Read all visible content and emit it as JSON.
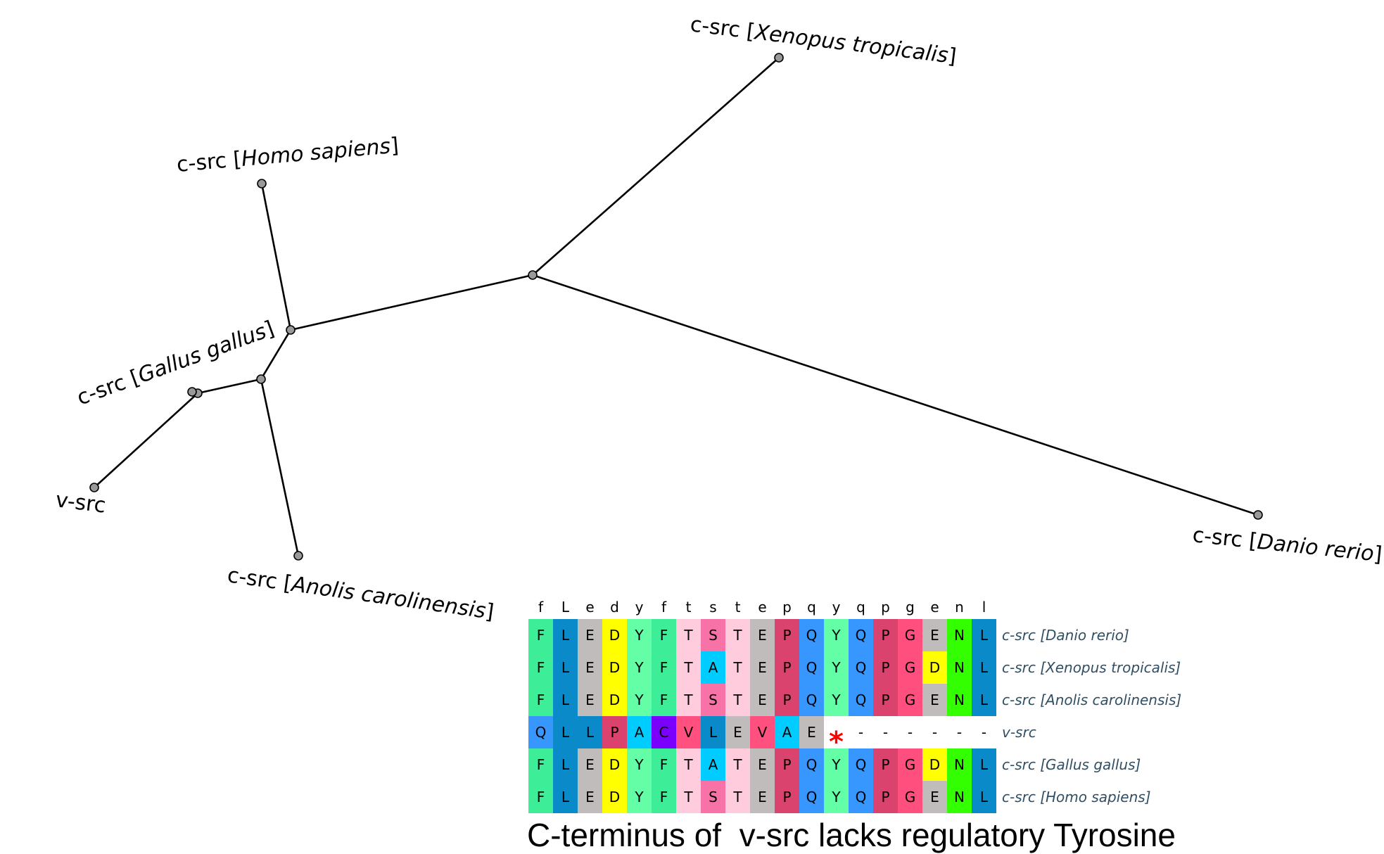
{
  "tree": {
    "leaves": [
      {
        "prefix": "c-src [",
        "species": "Xenopus tropicalis",
        "suffix": "]"
      },
      {
        "prefix": "c-src [",
        "species": "Homo sapiens",
        "suffix": "]"
      },
      {
        "prefix": "c-src [",
        "species": "Gallus gallus",
        "suffix": "]"
      },
      {
        "prefix": "v-src",
        "species": "",
        "suffix": ""
      },
      {
        "prefix": "c-src [",
        "species": "Anolis carolinensis",
        "suffix": "]"
      },
      {
        "prefix": "c-src [",
        "species": "Danio rerio",
        "suffix": "]"
      }
    ],
    "node_color": "#999999",
    "branch_color": "#000000"
  },
  "alignment": {
    "consensus": [
      "f",
      "L",
      "e",
      "d",
      "y",
      "f",
      "t",
      "s",
      "t",
      "e",
      "p",
      "q",
      "y",
      "q",
      "p",
      "g",
      "e",
      "n",
      "l"
    ],
    "sequences": [
      {
        "name": "c-src [Danio rerio]",
        "residues": [
          "F",
          "L",
          "E",
          "D",
          "Y",
          "F",
          "T",
          "S",
          "T",
          "E",
          "P",
          "Q",
          "Y",
          "Q",
          "P",
          "G",
          "E",
          "N",
          "L"
        ]
      },
      {
        "name": "c-src [Xenopus tropicalis]",
        "residues": [
          "F",
          "L",
          "E",
          "D",
          "Y",
          "F",
          "T",
          "A",
          "T",
          "E",
          "P",
          "Q",
          "Y",
          "Q",
          "P",
          "G",
          "D",
          "N",
          "L"
        ]
      },
      {
        "name": "c-src [Anolis carolinensis]",
        "residues": [
          "F",
          "L",
          "E",
          "D",
          "Y",
          "F",
          "T",
          "S",
          "T",
          "E",
          "P",
          "Q",
          "Y",
          "Q",
          "P",
          "G",
          "E",
          "N",
          "L"
        ]
      },
      {
        "name": "v-src",
        "residues": [
          "Q",
          "L",
          "L",
          "P",
          "A",
          "C",
          "V",
          "L",
          "E",
          "V",
          "A",
          "E",
          "*",
          "-",
          "-",
          "-",
          "-",
          "-",
          "-"
        ]
      },
      {
        "name": "c-src [Gallus gallus]",
        "residues": [
          "F",
          "L",
          "E",
          "D",
          "Y",
          "F",
          "T",
          "A",
          "T",
          "E",
          "P",
          "Q",
          "Y",
          "Q",
          "P",
          "G",
          "D",
          "N",
          "L"
        ]
      },
      {
        "name": "c-src [Homo sapiens]",
        "residues": [
          "F",
          "L",
          "E",
          "D",
          "Y",
          "F",
          "T",
          "S",
          "T",
          "E",
          "P",
          "Q",
          "Y",
          "Q",
          "P",
          "G",
          "E",
          "N",
          "L"
        ]
      }
    ],
    "residue_colors": {
      "F": "#3ded97",
      "L": "#0a8ac8",
      "E": "#c0bcbc",
      "D": "#ffff00",
      "Y": "#63fea5",
      "T": "#ffccdd",
      "S": "#f772a6",
      "A": "#00ccff",
      "P": "#d9436d",
      "Q": "#3797fe",
      "G": "#ff4f7e",
      "N": "#33ff00",
      "C": "#7a00ff",
      "V": "#ff5080"
    },
    "stop_color": "#ff0000"
  },
  "caption": "C-terminus of  v-src lacks regulatory Tyrosine"
}
